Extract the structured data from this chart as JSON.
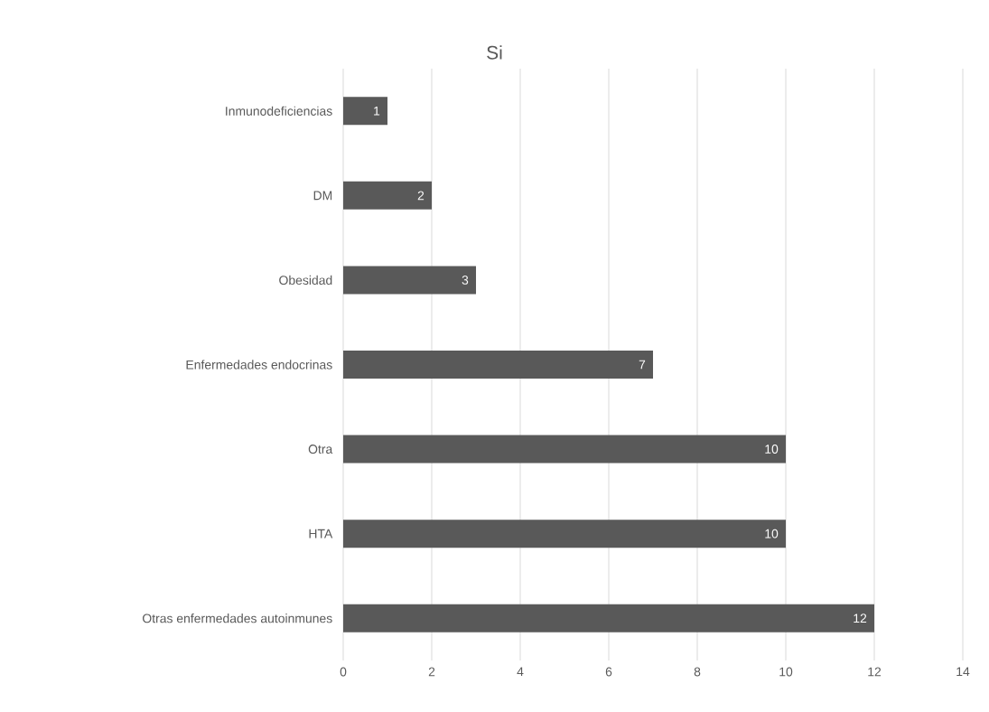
{
  "chart_data": {
    "type": "bar",
    "orientation": "horizontal",
    "title": "Si",
    "categories": [
      "Inmunodeficiencias",
      "DM",
      "Obesidad",
      "Enfermedades endocrinas",
      "Otra",
      "HTA",
      "Otras enfermedades autoinmunes"
    ],
    "values": [
      1,
      2,
      3,
      7,
      10,
      10,
      12
    ],
    "color": "#595959",
    "xlim": [
      0,
      14
    ],
    "xticks": [
      0,
      2,
      4,
      6,
      8,
      10,
      12,
      14
    ],
    "grid": "x",
    "data_labels": true
  }
}
